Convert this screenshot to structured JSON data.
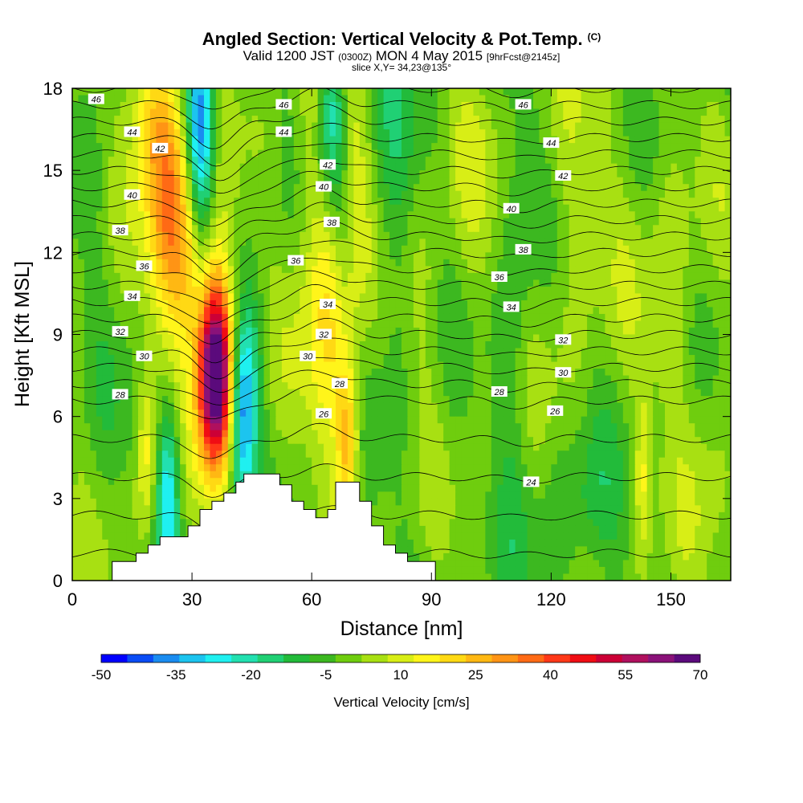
{
  "chart_data": {
    "type": "heatmap",
    "title": "Angled Section: Vertical Velocity & Pot.Temp.",
    "title_suffix": "(C)",
    "subtitle_main_a": "Valid 1200 JST",
    "subtitle_small_a": "(0300Z)",
    "subtitle_main_b": "MON 4 May 2015",
    "subtitle_small_b": "[9hrFcst@2145z]",
    "slice_label": "slice X,Y= 34,23@135°",
    "xlabel": "Distance [nm]",
    "ylabel": "Height [Kft MSL]",
    "xlim": [
      0,
      165
    ],
    "ylim": [
      0,
      18
    ],
    "x_ticks": [
      "0",
      "30",
      "60",
      "90",
      "120",
      "150"
    ],
    "x_tick_values": [
      0,
      30,
      60,
      90,
      120,
      150
    ],
    "y_ticks": [
      "0",
      "3",
      "6",
      "9",
      "12",
      "15",
      "18"
    ],
    "y_tick_values": [
      0,
      3,
      6,
      9,
      12,
      15,
      18
    ],
    "colorbar": {
      "label": "Vertical Velocity [cm/s]",
      "tick_labels": [
        "-50",
        "-35",
        "-20",
        "-5",
        "10",
        "25",
        "40",
        "55",
        "70"
      ],
      "tick_values": [
        -50,
        -35,
        -20,
        -5,
        10,
        25,
        40,
        55,
        70
      ],
      "colors": [
        "#0000ff",
        "#0a4cf5",
        "#1a8cf0",
        "#1cc4ef",
        "#1ff0f0",
        "#22e0b0",
        "#20d074",
        "#22bb3a",
        "#3cb820",
        "#6fcd0e",
        "#a8e012",
        "#d8ee16",
        "#fff51a",
        "#ffd914",
        "#ffb813",
        "#ff9415",
        "#ff6a15",
        "#ff3818",
        "#f00d14",
        "#cc0036",
        "#b0105e",
        "#8a1279",
        "#5b0a7c"
      ]
    },
    "terrain": [
      [
        0,
        0
      ],
      [
        10,
        0
      ],
      [
        10,
        0.7
      ],
      [
        16,
        0.7
      ],
      [
        16,
        1
      ],
      [
        19,
        1
      ],
      [
        19,
        1.3
      ],
      [
        22,
        1.3
      ],
      [
        22,
        1.6
      ],
      [
        29,
        1.6
      ],
      [
        29,
        2
      ],
      [
        32,
        2
      ],
      [
        32,
        2.6
      ],
      [
        35,
        2.6
      ],
      [
        35,
        2.9
      ],
      [
        38,
        2.9
      ],
      [
        38,
        3.2
      ],
      [
        41,
        3.2
      ],
      [
        41,
        3.6
      ],
      [
        43,
        3.6
      ],
      [
        43,
        3.9
      ],
      [
        52,
        3.9
      ],
      [
        52,
        3.5
      ],
      [
        55,
        3.5
      ],
      [
        55,
        2.9
      ],
      [
        58,
        2.9
      ],
      [
        58,
        2.6
      ],
      [
        61,
        2.6
      ],
      [
        61,
        2.3
      ],
      [
        64,
        2.3
      ],
      [
        64,
        2.6
      ],
      [
        66,
        2.6
      ],
      [
        66,
        3.6
      ],
      [
        72,
        3.6
      ],
      [
        72,
        2.9
      ],
      [
        75,
        2.9
      ],
      [
        75,
        2.0
      ],
      [
        78,
        2.0
      ],
      [
        78,
        1.3
      ],
      [
        81,
        1.3
      ],
      [
        81,
        1.0
      ],
      [
        84,
        1.0
      ],
      [
        84,
        0.7
      ],
      [
        91,
        0.7
      ],
      [
        91,
        0
      ],
      [
        165,
        0
      ]
    ],
    "updrafts": [
      {
        "x": 36,
        "y": 7.5,
        "sx": 3.0,
        "sy": 2.3,
        "v": 72
      },
      {
        "x": 34,
        "y": 10,
        "sx": 4.0,
        "sy": 3.5,
        "v": 20
      },
      {
        "x": 24,
        "y": 14.5,
        "sx": 4.0,
        "sy": 3.5,
        "v": 28
      },
      {
        "x": 29,
        "y": 12,
        "sx": 4.0,
        "sy": 2.5,
        "v": 16
      },
      {
        "x": 19,
        "y": 17,
        "sx": 3.5,
        "sy": 2,
        "v": 18
      },
      {
        "x": 63,
        "y": 12,
        "sx": 5.5,
        "sy": 5,
        "v": 17
      },
      {
        "x": 69,
        "y": 14.5,
        "sx": 4,
        "sy": 3,
        "v": 12
      },
      {
        "x": 67,
        "y": 8,
        "sx": 3.5,
        "sy": 2.5,
        "v": 8
      },
      {
        "x": 69,
        "y": 5,
        "sx": 2,
        "sy": 2,
        "v": 26
      },
      {
        "x": 19,
        "y": 4.8,
        "sx": 2,
        "sy": 2.2,
        "v": 19
      },
      {
        "x": 143,
        "y": 3.8,
        "sx": 1.5,
        "sy": 2.2,
        "v": 15
      },
      {
        "x": 126,
        "y": 13,
        "sx": 7,
        "sy": 4,
        "v": 8
      },
      {
        "x": 150,
        "y": 12,
        "sx": 6,
        "sy": 6,
        "v": 7
      },
      {
        "x": 100,
        "y": 14,
        "sx": 6,
        "sy": 4,
        "v": 6
      },
      {
        "x": 88,
        "y": 10.5,
        "sx": 4,
        "sy": 3,
        "v": 5
      },
      {
        "x": 160,
        "y": 5,
        "sx": 4,
        "sy": 3,
        "v": 6
      }
    ],
    "downdrafts": [
      {
        "x": 32,
        "y": 16.8,
        "sx": 2.5,
        "sy": 2.5,
        "v": -38
      },
      {
        "x": 33,
        "y": 13,
        "sx": 2.5,
        "sy": 3,
        "v": -15
      },
      {
        "x": 24,
        "y": 3.2,
        "sx": 2.2,
        "sy": 2.2,
        "v": -30
      },
      {
        "x": 42.5,
        "y": 6,
        "sx": 2.2,
        "sy": 2.2,
        "v": -32
      },
      {
        "x": 45,
        "y": 8,
        "sx": 3,
        "sy": 2,
        "v": -10
      },
      {
        "x": 65,
        "y": 16.8,
        "sx": 2.5,
        "sy": 2.5,
        "v": -32
      },
      {
        "x": 68,
        "y": 13,
        "sx": 2,
        "sy": 2.5,
        "v": -12
      },
      {
        "x": 111,
        "y": 10,
        "sx": 3,
        "sy": 6,
        "v": -8
      },
      {
        "x": 128,
        "y": 2.5,
        "sx": 6,
        "sy": 2,
        "v": -7
      },
      {
        "x": 80,
        "y": 14,
        "sx": 5,
        "sy": 4,
        "v": -8
      }
    ],
    "theta_labels": [
      {
        "text": "46",
        "x": 6,
        "y": 17.6
      },
      {
        "text": "44",
        "x": 15,
        "y": 16.4
      },
      {
        "text": "42",
        "x": 22,
        "y": 15.8
      },
      {
        "text": "40",
        "x": 15,
        "y": 14.1
      },
      {
        "text": "38",
        "x": 12,
        "y": 12.8
      },
      {
        "text": "36",
        "x": 18,
        "y": 11.5
      },
      {
        "text": "34",
        "x": 15,
        "y": 10.4
      },
      {
        "text": "32",
        "x": 12,
        "y": 9.1
      },
      {
        "text": "30",
        "x": 18,
        "y": 8.2
      },
      {
        "text": "28",
        "x": 12,
        "y": 6.8
      },
      {
        "text": "46",
        "x": 53,
        "y": 17.4
      },
      {
        "text": "44",
        "x": 53,
        "y": 16.4
      },
      {
        "text": "42",
        "x": 64,
        "y": 15.2
      },
      {
        "text": "40",
        "x": 63,
        "y": 14.4
      },
      {
        "text": "38",
        "x": 65,
        "y": 13.1
      },
      {
        "text": "36",
        "x": 56,
        "y": 11.7
      },
      {
        "text": "34",
        "x": 64,
        "y": 10.1
      },
      {
        "text": "32",
        "x": 63,
        "y": 9.0
      },
      {
        "text": "30",
        "x": 59,
        "y": 8.2
      },
      {
        "text": "28",
        "x": 67,
        "y": 7.2
      },
      {
        "text": "26",
        "x": 63,
        "y": 6.1
      },
      {
        "text": "46",
        "x": 113,
        "y": 17.4
      },
      {
        "text": "44",
        "x": 120,
        "y": 16.0
      },
      {
        "text": "42",
        "x": 123,
        "y": 14.8
      },
      {
        "text": "40",
        "x": 110,
        "y": 13.6
      },
      {
        "text": "38",
        "x": 113,
        "y": 12.1
      },
      {
        "text": "36",
        "x": 107,
        "y": 11.1
      },
      {
        "text": "34",
        "x": 110,
        "y": 10.0
      },
      {
        "text": "32",
        "x": 123,
        "y": 8.8
      },
      {
        "text": "30",
        "x": 123,
        "y": 7.6
      },
      {
        "text": "28",
        "x": 107,
        "y": 6.9
      },
      {
        "text": "26",
        "x": 121,
        "y": 6.2
      },
      {
        "text": "24",
        "x": 115,
        "y": 3.6
      }
    ]
  }
}
